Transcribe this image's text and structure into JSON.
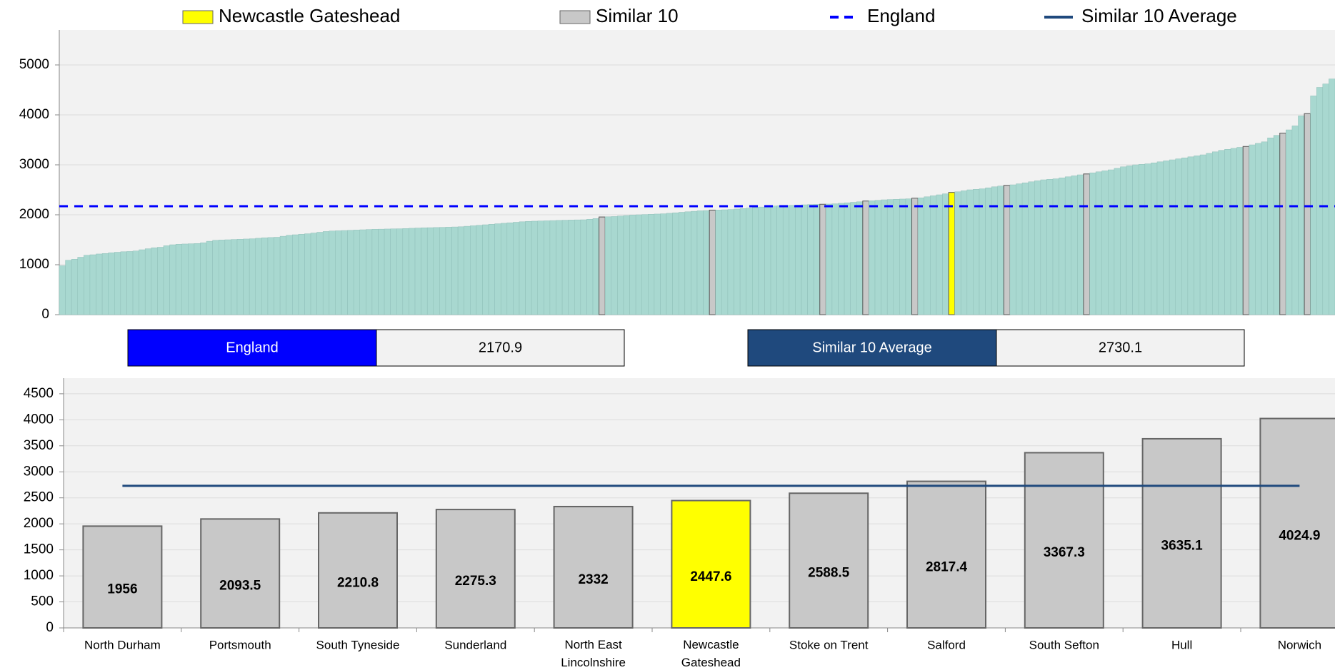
{
  "legend": [
    {
      "name": "Newcastle Gateshead",
      "color": "#ffff00",
      "symbol": "box"
    },
    {
      "name": "Similar 10",
      "color": "#c8c8c8",
      "symbol": "box"
    },
    {
      "name": "England",
      "color": "#0000ff",
      "symbol": "dashed"
    },
    {
      "name": "Similar 10 Average",
      "color": "#1f497d",
      "symbol": "solid"
    }
  ],
  "summary": [
    {
      "label": "England",
      "value": 2170.9,
      "color": "#0000ff"
    },
    {
      "label": "Similar 10 Average",
      "value": 2730.1,
      "color": "#1f497d"
    }
  ],
  "chart_data": [
    {
      "type": "bar",
      "color": "#a8d8d0",
      "ylim": [
        0,
        5700
      ],
      "yticks": [
        0,
        1000,
        2000,
        3000,
        4000,
        5000
      ],
      "grid": true,
      "values": [
        980,
        1090,
        1110,
        1150,
        1190,
        1200,
        1215,
        1225,
        1240,
        1250,
        1260,
        1265,
        1275,
        1300,
        1320,
        1340,
        1350,
        1380,
        1400,
        1410,
        1415,
        1420,
        1425,
        1440,
        1470,
        1490,
        1495,
        1500,
        1505,
        1510,
        1515,
        1520,
        1530,
        1540,
        1545,
        1550,
        1570,
        1590,
        1600,
        1610,
        1620,
        1635,
        1650,
        1665,
        1675,
        1680,
        1685,
        1690,
        1695,
        1700,
        1705,
        1710,
        1712,
        1715,
        1718,
        1720,
        1725,
        1730,
        1735,
        1740,
        1742,
        1745,
        1748,
        1752,
        1756,
        1760,
        1770,
        1780,
        1790,
        1800,
        1810,
        1820,
        1830,
        1840,
        1850,
        1860,
        1868,
        1872,
        1876,
        1880,
        1884,
        1888,
        1892,
        1895,
        1898,
        1900,
        1910,
        1925,
        1956,
        1960,
        1965,
        1975,
        1985,
        1995,
        2000,
        2005,
        2010,
        2015,
        2020,
        2030,
        2040,
        2050,
        2060,
        2070,
        2080,
        2085,
        2093.5,
        2095,
        2100,
        2105,
        2115,
        2125,
        2135,
        2145,
        2155,
        2165,
        2175,
        2180,
        2185,
        2190,
        2195,
        2200,
        2205,
        2208,
        2210.8,
        2215,
        2220,
        2230,
        2240,
        2250,
        2260,
        2275.3,
        2280,
        2290,
        2300,
        2305,
        2310,
        2315,
        2320,
        2332,
        2340,
        2360,
        2380,
        2400,
        2420,
        2447.6,
        2460,
        2480,
        2500,
        2510,
        2520,
        2540,
        2560,
        2575,
        2588.5,
        2600,
        2620,
        2640,
        2660,
        2680,
        2700,
        2710,
        2720,
        2740,
        2760,
        2780,
        2800,
        2817.4,
        2840,
        2860,
        2880,
        2900,
        2930,
        2960,
        2980,
        3000,
        3010,
        3020,
        3040,
        3060,
        3080,
        3100,
        3120,
        3140,
        3160,
        3180,
        3200,
        3230,
        3260,
        3290,
        3310,
        3330,
        3350,
        3367.3,
        3400,
        3430,
        3460,
        3540,
        3590,
        3635.1,
        3700,
        3780,
        3980,
        4024.9,
        4380,
        4550,
        4620,
        4720
      ]
    },
    {
      "type": "bar",
      "ylim": [
        0,
        4800
      ],
      "yticks": [
        0,
        500,
        1000,
        1500,
        2000,
        2500,
        3000,
        3500,
        4000,
        4500
      ],
      "grid": true,
      "categories": [
        "North Durham",
        "Portsmouth",
        "South Tyneside",
        "Sunderland",
        "North East Lincolnshire",
        "Newcastle Gateshead",
        "Stoke on Trent",
        "Salford",
        "South Sefton",
        "Hull",
        "Norwich"
      ],
      "values": [
        1956,
        2093.5,
        2210.8,
        2275.3,
        2332,
        2447.6,
        2588.5,
        2817.4,
        3367.3,
        3635.1,
        4024.9
      ],
      "colors": [
        "#c8c8c8",
        "#c8c8c8",
        "#c8c8c8",
        "#c8c8c8",
        "#c8c8c8",
        "#ffff00",
        "#c8c8c8",
        "#c8c8c8",
        "#c8c8c8",
        "#c8c8c8",
        "#c8c8c8"
      ]
    }
  ]
}
